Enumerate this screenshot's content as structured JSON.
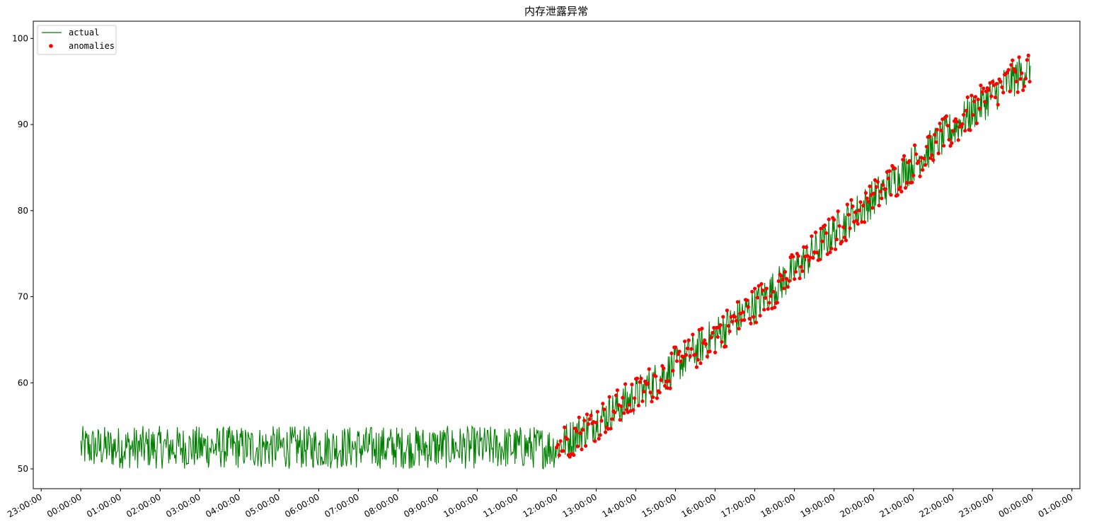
{
  "chart_data": {
    "type": "line",
    "title": "内存泄露异常",
    "xlabel": "",
    "ylabel": "",
    "x_tick_labels": [
      "23:00:00",
      "00:00:00",
      "01:00:00",
      "02:00:00",
      "03:00:00",
      "04:00:00",
      "05:00:00",
      "06:00:00",
      "07:00:00",
      "08:00:00",
      "09:00:00",
      "10:00:00",
      "11:00:00",
      "12:00:00",
      "13:00:00",
      "14:00:00",
      "15:00:00",
      "16:00:00",
      "17:00:00",
      "18:00:00",
      "19:00:00",
      "20:00:00",
      "21:00:00",
      "22:00:00",
      "23:00:00",
      "00:00:00",
      "01:00:00"
    ],
    "xlim_hours": [
      -1.2,
      25.2
    ],
    "ylim": [
      47.7,
      102.0
    ],
    "y_ticks": [
      50,
      60,
      70,
      80,
      90,
      100
    ],
    "grid": false,
    "legend": {
      "placement": "top-left",
      "entries": [
        "actual",
        "anomalies"
      ]
    },
    "colors": {
      "actual": "#008000",
      "anomalies": "#ff0000"
    },
    "series": [
      {
        "name": "actual",
        "kind": "line",
        "description": "stable noise 50–55 from 00:00 to 12:00, then linear rise from ~52 to ~97 by ~23:55",
        "hours": [
          0,
          1,
          2,
          3,
          4,
          5,
          6,
          7,
          8,
          9,
          10,
          11,
          12,
          13,
          14,
          15,
          16,
          17,
          18,
          19,
          20,
          21,
          22,
          23,
          23.95
        ],
        "trend": [
          52.5,
          52.5,
          52.5,
          52.5,
          52.5,
          52.5,
          52.5,
          52.5,
          52.5,
          52.5,
          52.5,
          52.5,
          52.5,
          55.5,
          58.5,
          62.0,
          65.5,
          69.0,
          73.0,
          77.5,
          81.5,
          85.5,
          89.5,
          93.5,
          96.8
        ],
        "noise_range": [
          50.0,
          55.0
        ]
      },
      {
        "name": "anomalies",
        "kind": "scatter",
        "description": "anomaly points cover the rising segment from 12:00 onward",
        "hours_range": [
          12.0,
          24.0
        ]
      }
    ]
  }
}
